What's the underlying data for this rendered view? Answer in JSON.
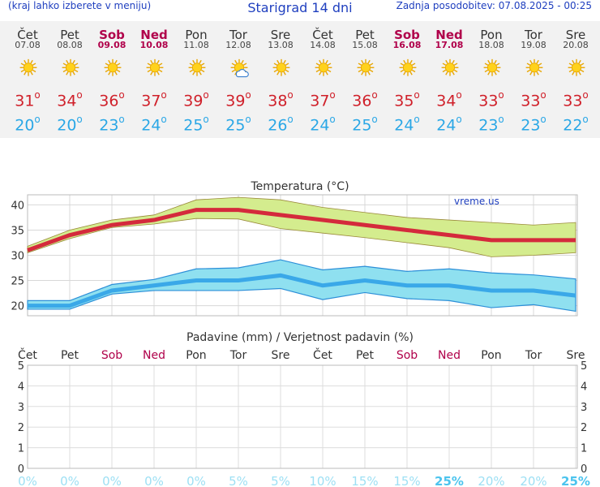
{
  "header": {
    "hint": "(kraj lahko izberete v meniju)",
    "title": "Starigrad 14 dni",
    "updated": "Zadnja posodobitev: 07.08.2025 - 00:25"
  },
  "days": [
    {
      "name": "Čet",
      "date": "07.08",
      "weekend": false,
      "icon": "sun-icon",
      "tmax": "31",
      "tmin": "20"
    },
    {
      "name": "Pet",
      "date": "08.08",
      "weekend": false,
      "icon": "sun-icon",
      "tmax": "34",
      "tmin": "20"
    },
    {
      "name": "Sob",
      "date": "09.08",
      "weekend": true,
      "icon": "sun-icon",
      "tmax": "36",
      "tmin": "23"
    },
    {
      "name": "Ned",
      "date": "10.08",
      "weekend": true,
      "icon": "sun-icon",
      "tmax": "37",
      "tmin": "24"
    },
    {
      "name": "Pon",
      "date": "11.08",
      "weekend": false,
      "icon": "sun-icon",
      "tmax": "39",
      "tmin": "25"
    },
    {
      "name": "Tor",
      "date": "12.08",
      "weekend": false,
      "icon": "sun-cloud-icon",
      "tmax": "39",
      "tmin": "25"
    },
    {
      "name": "Sre",
      "date": "13.08",
      "weekend": false,
      "icon": "sun-icon",
      "tmax": "38",
      "tmin": "26"
    },
    {
      "name": "Čet",
      "date": "14.08",
      "weekend": false,
      "icon": "sun-icon",
      "tmax": "37",
      "tmin": "24"
    },
    {
      "name": "Pet",
      "date": "15.08",
      "weekend": false,
      "icon": "sun-icon",
      "tmax": "36",
      "tmin": "25"
    },
    {
      "name": "Sob",
      "date": "16.08",
      "weekend": true,
      "icon": "sun-icon",
      "tmax": "35",
      "tmin": "24"
    },
    {
      "name": "Ned",
      "date": "17.08",
      "weekend": true,
      "icon": "sun-icon",
      "tmax": "34",
      "tmin": "24"
    },
    {
      "name": "Pon",
      "date": "18.08",
      "weekend": false,
      "icon": "sun-icon",
      "tmax": "33",
      "tmin": "23"
    },
    {
      "name": "Tor",
      "date": "19.08",
      "weekend": false,
      "icon": "sun-icon",
      "tmax": "33",
      "tmin": "23"
    },
    {
      "name": "Sre",
      "date": "20.08",
      "weekend": false,
      "icon": "sun-icon",
      "tmax": "33",
      "tmin": "22"
    }
  ],
  "colors": {
    "max": "#d42a3c",
    "min": "#3aa8e8",
    "maxBand": "#d4ec8e",
    "minBand": "#8fe0f0",
    "weekend": "#b0004a",
    "precipZero": "#9ee0f4",
    "precipHigh": "#4cc4ee"
  },
  "chart_data": [
    {
      "type": "line",
      "title": "Temperatura (°C)",
      "watermark": "vreme.us",
      "ylim": [
        18,
        42
      ],
      "yticks": [
        20,
        25,
        30,
        35,
        40
      ],
      "categories": [
        "07.08",
        "08.08",
        "09.08",
        "10.08",
        "11.08",
        "12.08",
        "13.08",
        "14.08",
        "15.08",
        "16.08",
        "17.08",
        "18.08",
        "19.08",
        "20.08"
      ],
      "series": [
        {
          "name": "max",
          "values": [
            31,
            34,
            36,
            37,
            39,
            39,
            38,
            37,
            36,
            35,
            34,
            33,
            33,
            33
          ],
          "upper": [
            31.8,
            35,
            37,
            38,
            41,
            41.5,
            41,
            39.5,
            38.5,
            37.5,
            37,
            36.5,
            36,
            36.5
          ],
          "lower": [
            30.5,
            33.3,
            35.5,
            36.2,
            37.3,
            37.2,
            35.3,
            34.4,
            33.5,
            32.5,
            31.5,
            29.7,
            30,
            30.5
          ]
        },
        {
          "name": "min",
          "values": [
            20,
            20,
            23,
            24,
            25,
            25,
            26,
            24,
            25,
            24,
            24,
            23,
            23,
            22
          ],
          "upper": [
            21,
            21,
            24.2,
            25.2,
            27.3,
            27.5,
            29.1,
            27.1,
            27.8,
            26.8,
            27.3,
            26.5,
            26.1,
            25.3
          ],
          "lower": [
            19.3,
            19.3,
            22.3,
            23,
            23,
            23,
            23.4,
            21.2,
            22.6,
            21.4,
            21,
            19.6,
            20.2,
            18.9
          ]
        }
      ]
    },
    {
      "type": "bar",
      "title": "Padavine (mm) / Verjetnost padavin (%)",
      "ylim": [
        0,
        5
      ],
      "yticks": [
        0,
        1,
        2,
        3,
        4,
        5
      ],
      "categories": [
        "Čet",
        "Pet",
        "Sob",
        "Ned",
        "Pon",
        "Tor",
        "Sre",
        "Čet",
        "Pet",
        "Sob",
        "Ned",
        "Pon",
        "Tor",
        "Sre"
      ],
      "weekend": [
        false,
        false,
        true,
        true,
        false,
        false,
        false,
        false,
        false,
        true,
        true,
        false,
        false,
        false
      ],
      "values": [
        0,
        0,
        0,
        0,
        0,
        0,
        0,
        0,
        0,
        0,
        0,
        0,
        0,
        0
      ],
      "probability": [
        "0%",
        "0%",
        "0%",
        "0%",
        "0%",
        "5%",
        "5%",
        "10%",
        "15%",
        "15%",
        "25%",
        "20%",
        "20%",
        "25%"
      ]
    }
  ]
}
